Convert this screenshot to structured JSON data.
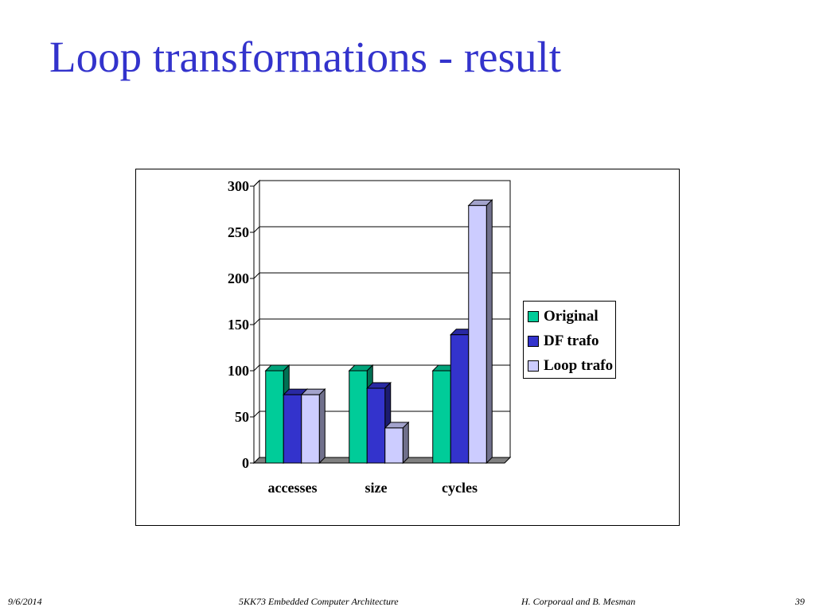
{
  "slide": {
    "title": "Loop transformations - result"
  },
  "footer": {
    "date": "9/6/2014",
    "course": "5KK73 Embedded Computer Architecture",
    "authors": "H. Corporaal and B. Mesman",
    "page": "39"
  },
  "chart_data": {
    "type": "bar",
    "title": "",
    "xlabel": "",
    "ylabel": "",
    "categories": [
      "accesses",
      "size",
      "cycles"
    ],
    "series": [
      {
        "name": "Original",
        "values": [
          100,
          100,
          100
        ],
        "color": "#00cc99"
      },
      {
        "name": "DF trafo",
        "values": [
          74,
          81,
          139
        ],
        "color": "#3333cc"
      },
      {
        "name": "Loop trafo",
        "values": [
          74,
          38,
          279
        ],
        "color": "#ccccff"
      }
    ],
    "ylim": [
      0,
      300
    ],
    "yticks": [
      "0",
      "50",
      "100",
      "150",
      "200",
      "250",
      "300"
    ],
    "grid": true,
    "legend_position": "right",
    "three_d": true
  }
}
